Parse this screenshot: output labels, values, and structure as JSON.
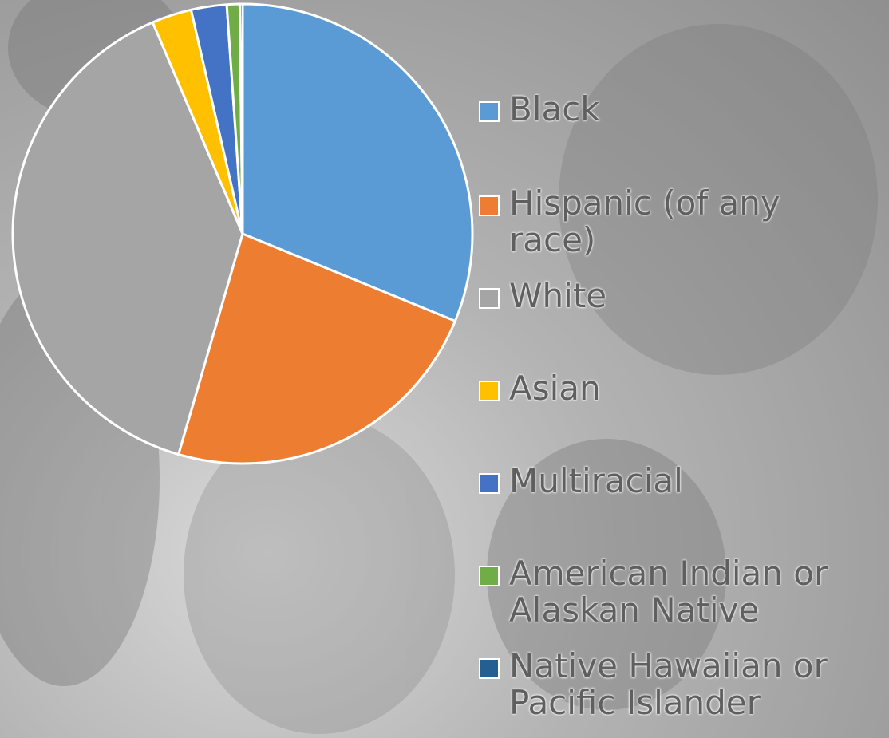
{
  "chart_data": {
    "type": "pie",
    "categories": [
      "Black",
      "Hispanic (of any race)",
      "White",
      "Asian",
      "Multiracial",
      "American Indian or Alaskan Native",
      "Native Hawaiian or Pacific Islander"
    ],
    "values": [
      31.2,
      23.3,
      39.1,
      2.8,
      2.5,
      0.9,
      0.2
    ],
    "colors": [
      "#5b9bd5",
      "#ed7d31",
      "#a5a5a5",
      "#ffc000",
      "#4472c4",
      "#70ad47",
      "#255e91"
    ],
    "legend": "right"
  }
}
